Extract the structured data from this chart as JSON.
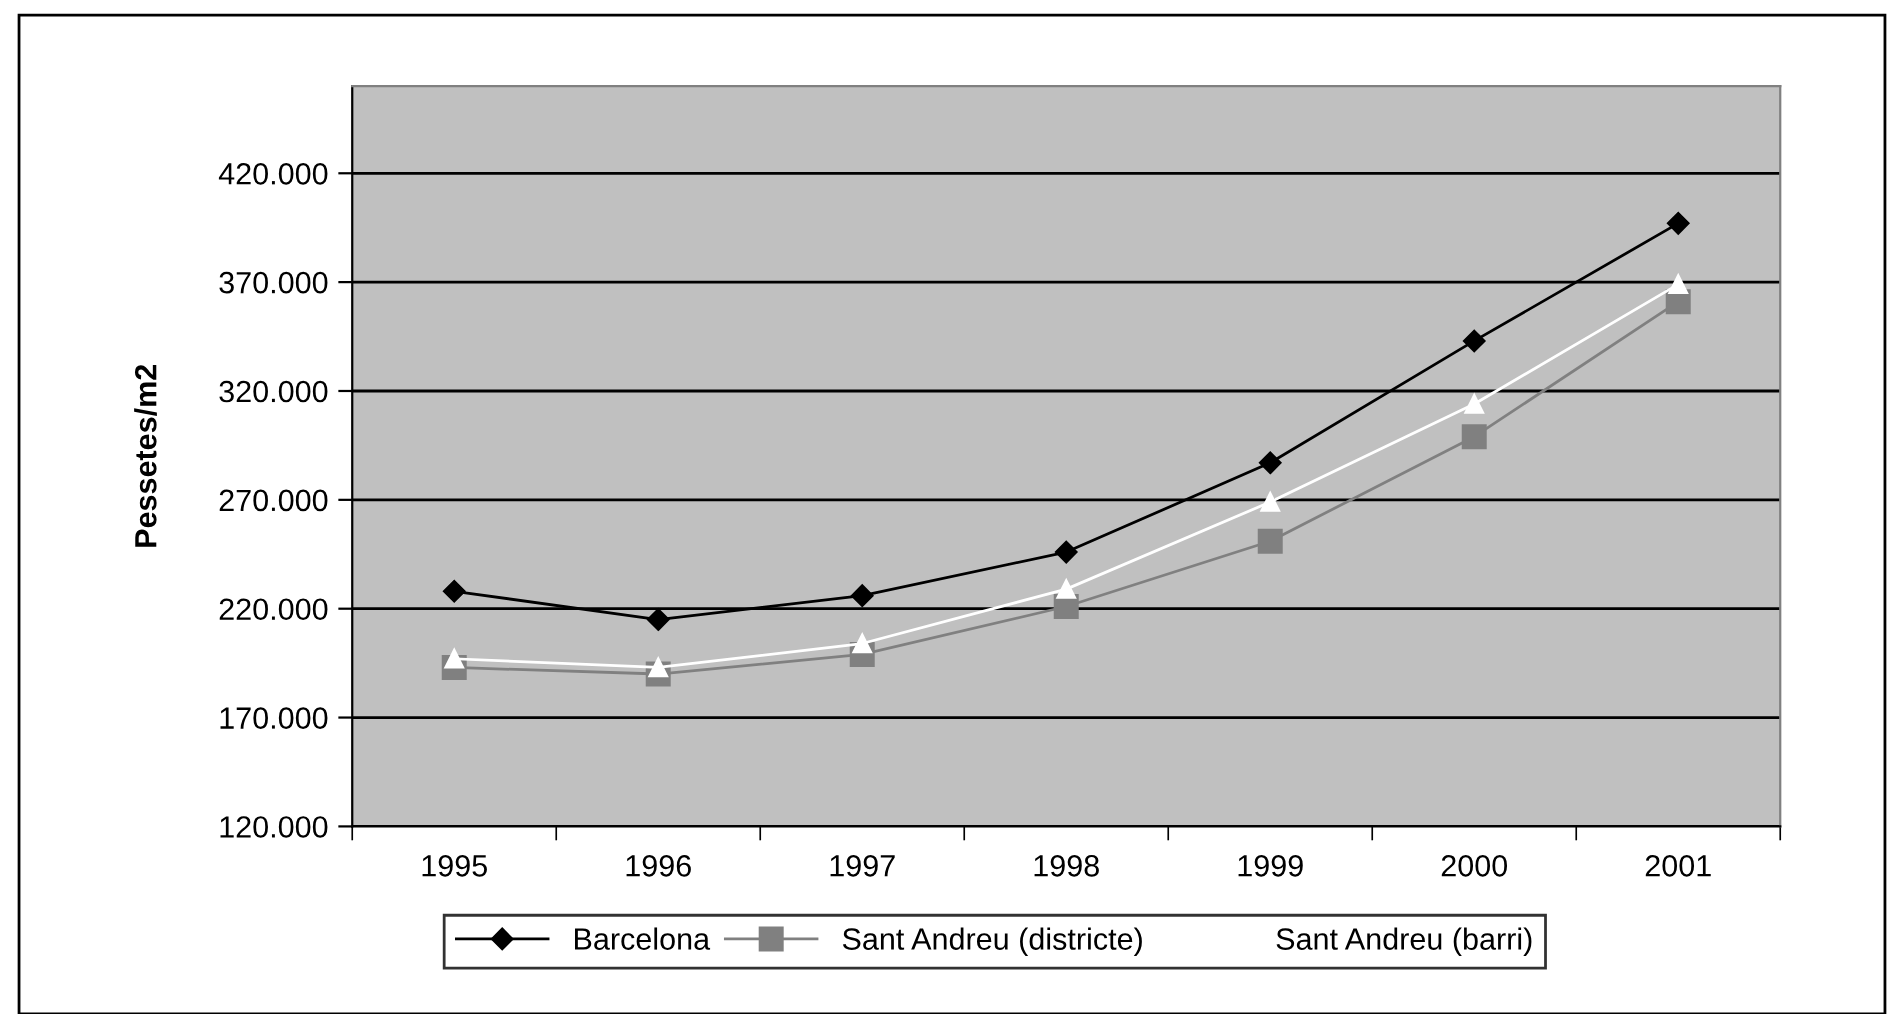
{
  "chart_data": {
    "type": "line",
    "ylabel": "Pessetes/m2",
    "categories": [
      "1995",
      "1996",
      "1997",
      "1998",
      "1999",
      "2000",
      "2001"
    ],
    "series": [
      {
        "name": "Barcelona",
        "color": "#000000",
        "marker": "diamond",
        "values": [
          228000,
          215000,
          226000,
          246000,
          287000,
          343000,
          397000
        ]
      },
      {
        "name": "Sant Andreu (districte)",
        "color": "#808080",
        "marker": "square",
        "values": [
          193000,
          190000,
          199000,
          221000,
          251000,
          299000,
          361000
        ]
      },
      {
        "name": "Sant Andreu (barri)",
        "color": "#ffffff",
        "marker": "triangle",
        "values": [
          197000,
          193000,
          204000,
          229000,
          269000,
          314000,
          369000
        ]
      }
    ],
    "ylim": [
      120000,
      460000
    ],
    "yticks": [
      {
        "value": 120000,
        "label": "120.000"
      },
      {
        "value": 170000,
        "label": "170.000"
      },
      {
        "value": 220000,
        "label": "220.000"
      },
      {
        "value": 270000,
        "label": "270.000"
      },
      {
        "value": 320000,
        "label": "320.000"
      },
      {
        "value": 370000,
        "label": "370.000"
      },
      {
        "value": 420000,
        "label": "420.000"
      }
    ],
    "grid": "y",
    "legend": "bottom"
  }
}
